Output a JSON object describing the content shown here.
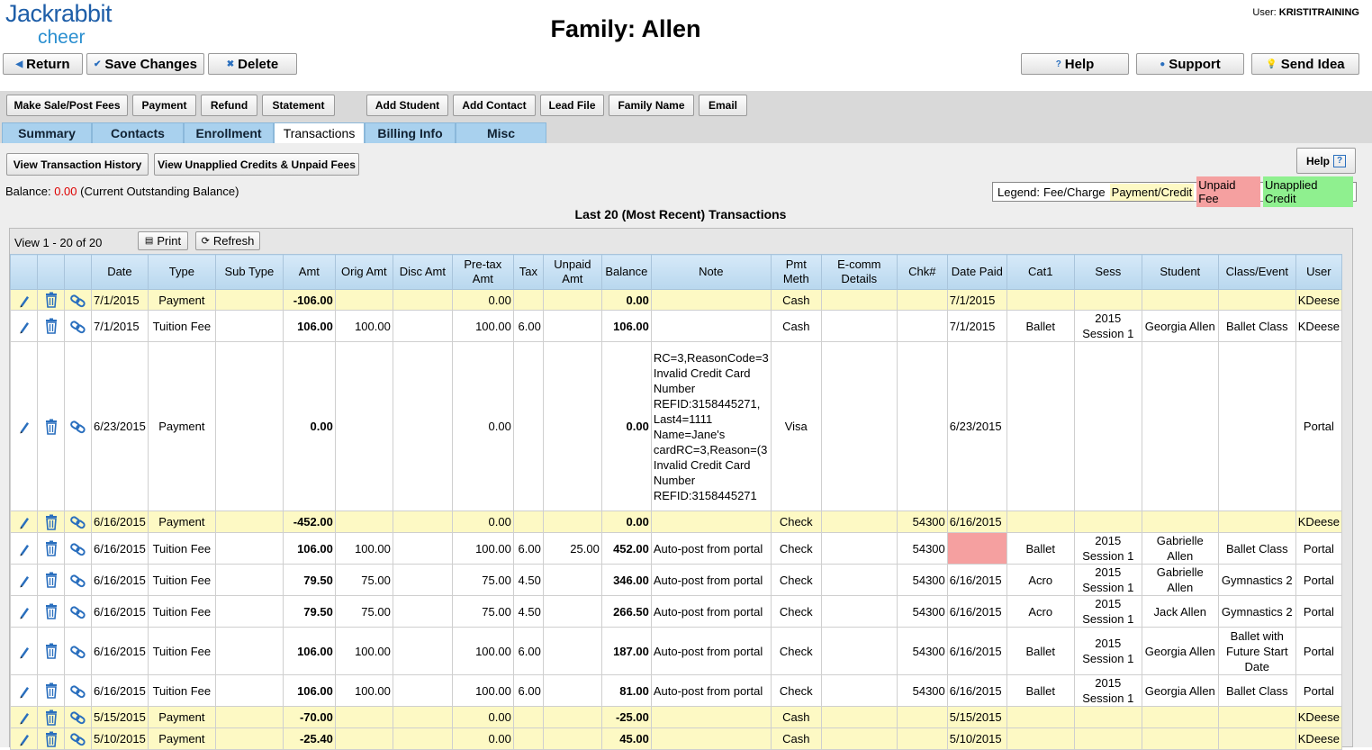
{
  "header": {
    "logo_line1": "Jackrabbit",
    "logo_line2": "cheer",
    "title": "Family: Allen",
    "user_label": "User:",
    "user_name": "KRISTITRAINING"
  },
  "topbar": {
    "return": "Return",
    "save": "Save Changes",
    "delete": "Delete",
    "help": "Help",
    "support": "Support",
    "send_idea": "Send Idea"
  },
  "actions": [
    "Make Sale/Post Fees",
    "Payment",
    "Refund",
    "Statement",
    "Add Student",
    "Add Contact",
    "Lead File",
    "Family Name",
    "Email"
  ],
  "tabs": [
    "Summary",
    "Contacts",
    "Enrollment",
    "Transactions",
    "Billing Info",
    "Misc"
  ],
  "active_tab": "Transactions",
  "subactions": {
    "history": "View Transaction History",
    "unapplied": "View Unapplied Credits & Unpaid Fees",
    "help": "Help"
  },
  "balance": {
    "label": "Balance:",
    "value": "0.00",
    "note": "(Current Outstanding Balance)"
  },
  "legend": {
    "label": "Legend:",
    "fee": "Fee/Charge",
    "payment": "Payment/Credit",
    "unpaid": "Unpaid Fee",
    "unapplied": "Unapplied Credit"
  },
  "grid": {
    "heading": "Last 20 (Most Recent) Transactions",
    "view_text": "View 1 - 20 of 20",
    "print": "Print",
    "refresh": "Refresh",
    "columns": [
      "Date",
      "Type",
      "Sub Type",
      "Amt",
      "Orig Amt",
      "Disc Amt",
      "Pre-tax Amt",
      "Tax",
      "Unpaid Amt",
      "Balance",
      "Note",
      "Pmt Meth",
      "E-comm Details",
      "Chk#",
      "Date Paid",
      "Cat1",
      "Sess",
      "Student",
      "Class/Event",
      "User"
    ],
    "rows": [
      {
        "kind": "pay",
        "date": "7/1/2015",
        "type": "Payment",
        "subtype": "",
        "amt": "-106.00",
        "orig": "",
        "disc": "",
        "pretax": "0.00",
        "tax": "",
        "unpaid": "",
        "balance": "0.00",
        "note": "",
        "pmt": "Cash",
        "ecomm": "",
        "chk": "",
        "datepaid": "7/1/2015",
        "cat1": "",
        "sess": "",
        "student": "",
        "cls": "",
        "user": "KDeese"
      },
      {
        "kind": "fee",
        "date": "7/1/2015",
        "type": "Tuition Fee",
        "subtype": "",
        "amt": "106.00",
        "orig": "100.00",
        "disc": "",
        "pretax": "100.00",
        "tax": "6.00",
        "unpaid": "",
        "balance": "106.00",
        "note": "",
        "pmt": "Cash",
        "ecomm": "",
        "chk": "",
        "datepaid": "7/1/2015",
        "cat1": "Ballet",
        "sess": "2015 Session 1",
        "student": "Georgia Allen",
        "cls": "Ballet Class",
        "user": "KDeese"
      },
      {
        "kind": "fee",
        "date": "6/23/2015",
        "type": "Payment",
        "subtype": "",
        "amt": "0.00",
        "orig": "",
        "disc": "",
        "pretax": "0.00",
        "tax": "",
        "unpaid": "",
        "balance": "0.00",
        "note": "RC=3,ReasonCode=3 Invalid Credit Card Number REFID:3158445271, Last4=1111 Name=Jane's cardRC=3,Reason=(3 Invalid Credit Card Number REFID:3158445271",
        "pmt": "Visa",
        "ecomm": "",
        "chk": "",
        "datepaid": "6/23/2015",
        "cat1": "",
        "sess": "",
        "student": "",
        "cls": "",
        "user": "Portal"
      },
      {
        "kind": "pay",
        "date": "6/16/2015",
        "type": "Payment",
        "subtype": "",
        "amt": "-452.00",
        "orig": "",
        "disc": "",
        "pretax": "0.00",
        "tax": "",
        "unpaid": "",
        "balance": "0.00",
        "note": "",
        "pmt": "Check",
        "ecomm": "",
        "chk": "54300",
        "datepaid": "6/16/2015",
        "cat1": "",
        "sess": "",
        "student": "",
        "cls": "",
        "user": "KDeese"
      },
      {
        "kind": "unpaid",
        "date": "6/16/2015",
        "type": "Tuition Fee",
        "subtype": "",
        "amt": "106.00",
        "orig": "100.00",
        "disc": "",
        "pretax": "100.00",
        "tax": "6.00",
        "unpaid": "25.00",
        "balance": "452.00",
        "note": "Auto-post from portal",
        "pmt": "Check",
        "ecomm": "",
        "chk": "54300",
        "datepaid": "",
        "cat1": "Ballet",
        "sess": "2015 Session 1",
        "student": "Gabrielle Allen",
        "cls": "Ballet Class",
        "user": "Portal"
      },
      {
        "kind": "fee",
        "date": "6/16/2015",
        "type": "Tuition Fee",
        "subtype": "",
        "amt": "79.50",
        "orig": "75.00",
        "disc": "",
        "pretax": "75.00",
        "tax": "4.50",
        "unpaid": "",
        "balance": "346.00",
        "note": "Auto-post from portal",
        "pmt": "Check",
        "ecomm": "",
        "chk": "54300",
        "datepaid": "6/16/2015",
        "cat1": "Acro",
        "sess": "2015 Session 1",
        "student": "Gabrielle Allen",
        "cls": "Gymnastics 2",
        "user": "Portal"
      },
      {
        "kind": "fee",
        "date": "6/16/2015",
        "type": "Tuition Fee",
        "subtype": "",
        "amt": "79.50",
        "orig": "75.00",
        "disc": "",
        "pretax": "75.00",
        "tax": "4.50",
        "unpaid": "",
        "balance": "266.50",
        "note": "Auto-post from portal",
        "pmt": "Check",
        "ecomm": "",
        "chk": "54300",
        "datepaid": "6/16/2015",
        "cat1": "Acro",
        "sess": "2015 Session 1",
        "student": "Jack Allen",
        "cls": "Gymnastics 2",
        "user": "Portal"
      },
      {
        "kind": "fee",
        "date": "6/16/2015",
        "type": "Tuition Fee",
        "subtype": "",
        "amt": "106.00",
        "orig": "100.00",
        "disc": "",
        "pretax": "100.00",
        "tax": "6.00",
        "unpaid": "",
        "balance": "187.00",
        "note": "Auto-post from portal",
        "pmt": "Check",
        "ecomm": "",
        "chk": "54300",
        "datepaid": "6/16/2015",
        "cat1": "Ballet",
        "sess": "2015 Session 1",
        "student": "Georgia Allen",
        "cls": "Ballet with Future Start Date",
        "user": "Portal"
      },
      {
        "kind": "fee",
        "date": "6/16/2015",
        "type": "Tuition Fee",
        "subtype": "",
        "amt": "106.00",
        "orig": "100.00",
        "disc": "",
        "pretax": "100.00",
        "tax": "6.00",
        "unpaid": "",
        "balance": "81.00",
        "note": "Auto-post from portal",
        "pmt": "Check",
        "ecomm": "",
        "chk": "54300",
        "datepaid": "6/16/2015",
        "cat1": "Ballet",
        "sess": "2015 Session 1",
        "student": "Georgia Allen",
        "cls": "Ballet Class",
        "user": "Portal"
      },
      {
        "kind": "pay",
        "date": "5/15/2015",
        "type": "Payment",
        "subtype": "",
        "amt": "-70.00",
        "orig": "",
        "disc": "",
        "pretax": "0.00",
        "tax": "",
        "unpaid": "",
        "balance": "-25.00",
        "note": "",
        "pmt": "Cash",
        "ecomm": "",
        "chk": "",
        "datepaid": "5/15/2015",
        "cat1": "",
        "sess": "",
        "student": "",
        "cls": "",
        "user": "KDeese"
      },
      {
        "kind": "pay",
        "date": "5/10/2015",
        "type": "Payment",
        "subtype": "",
        "amt": "-25.40",
        "orig": "",
        "disc": "",
        "pretax": "0.00",
        "tax": "",
        "unpaid": "",
        "balance": "45.00",
        "note": "",
        "pmt": "Cash",
        "ecomm": "",
        "chk": "",
        "datepaid": "5/10/2015",
        "cat1": "",
        "sess": "",
        "student": "",
        "cls": "",
        "user": "KDeese"
      }
    ]
  }
}
